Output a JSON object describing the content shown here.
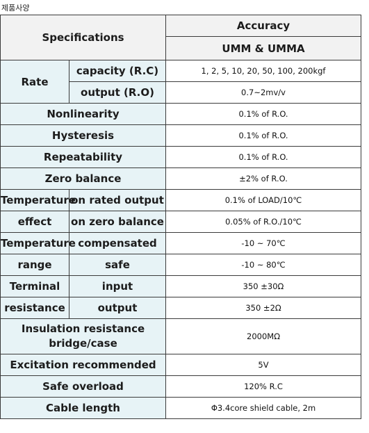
{
  "page_title": "제품사양",
  "header": {
    "specifications": "Specifications",
    "accuracy": "Accuracy",
    "model": "UMM & UMMA"
  },
  "rows": {
    "rate": {
      "label": "Rate",
      "capacity": {
        "label": "capacity (R.C)",
        "value": "1, 2, 5, 10, 20, 50, 100, 200kgf"
      },
      "output": {
        "label": "output (R.O)",
        "value": "0.7~2mv/v"
      }
    },
    "nonlinearity": {
      "label": "Nonlinearity",
      "value": "0.1% of R.O."
    },
    "hysteresis": {
      "label": "Hysteresis",
      "value": "0.1% of R.O."
    },
    "repeatability": {
      "label": "Repeatability",
      "value": "0.1% of R.O."
    },
    "zero_balance": {
      "label": "Zero balance",
      "value": "±2% of R.O."
    },
    "temperature_effect": {
      "label_top": "Temperature",
      "label_bottom": "effect",
      "on_rated_output": {
        "label": "on rated output",
        "value": "0.1% of LOAD/10℃"
      },
      "on_zero_balance": {
        "label": "on zero balance",
        "value": "0.05% of R.O./10℃"
      }
    },
    "temperature_range": {
      "label_top": "Temperature",
      "label_bottom": "range",
      "compensated": {
        "label": "compensated",
        "value": "-10 ~ 70℃"
      },
      "safe": {
        "label": "safe",
        "value": "-10 ~ 80℃"
      }
    },
    "terminal_resistance": {
      "label_top": "Terminal",
      "label_bottom": "resistance",
      "input": {
        "label": "input",
        "value": "350 ±30Ω"
      },
      "output": {
        "label": "output",
        "value": "350 ±2Ω"
      }
    },
    "insulation": {
      "label_line1": "Insulation resistance",
      "label_line2": "bridge/case",
      "value": "2000MΩ"
    },
    "excitation": {
      "label": "Excitation recommended",
      "value": "5V"
    },
    "safe_overload": {
      "label": "Safe overload",
      "value": "120% R.C"
    },
    "cable_length": {
      "label": "Cable length",
      "value": "Φ3.4core shield cable, 2m"
    }
  }
}
